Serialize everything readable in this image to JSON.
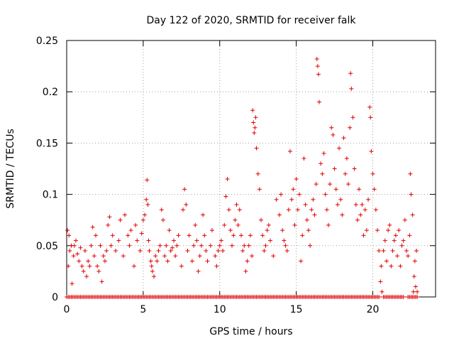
{
  "chart_data": {
    "type": "scatter",
    "title": "Day 122 of 2020, SRMTID for receiver falk",
    "xlabel": "GPS time / hours",
    "ylabel": "SRMTID / TECUs",
    "xlim": [
      0,
      24.1
    ],
    "ylim": [
      0,
      0.25
    ],
    "xticks": [
      0,
      5,
      10,
      15,
      20
    ],
    "xtick_labels": [
      "0",
      "5",
      "10",
      "15",
      "20"
    ],
    "yticks": [
      0,
      0.05,
      0.1,
      0.15,
      0.2,
      0.25
    ],
    "ytick_labels": [
      "0",
      "0.05",
      "0.1",
      "0.15",
      "0.2",
      "0.25"
    ],
    "grid": true,
    "marker": "+",
    "color": "#e00000",
    "series": [
      {
        "name": "SRMTID",
        "points": [
          [
            0.05,
            0.065
          ],
          [
            0.1,
            0.03
          ],
          [
            0.15,
            0.06
          ],
          [
            0.2,
            0.045
          ],
          [
            0.3,
            0.05
          ],
          [
            0.35,
            0.013
          ],
          [
            0.45,
            0.04
          ],
          [
            0.5,
            0.05
          ],
          [
            0.6,
            0.055
          ],
          [
            0.7,
            0.042
          ],
          [
            0.8,
            0.035
          ],
          [
            0.9,
            0.048
          ],
          [
            1.0,
            0.03
          ],
          [
            1.1,
            0.025
          ],
          [
            1.2,
            0.045
          ],
          [
            1.3,
            0.02
          ],
          [
            1.4,
            0.035
          ],
          [
            1.5,
            0.03
          ],
          [
            1.6,
            0.05
          ],
          [
            1.7,
            0.068
          ],
          [
            1.8,
            0.04
          ],
          [
            1.9,
            0.06
          ],
          [
            2.0,
            0.03
          ],
          [
            2.1,
            0.025
          ],
          [
            2.2,
            0.05
          ],
          [
            2.3,
            0.015
          ],
          [
            2.4,
            0.04
          ],
          [
            2.5,
            0.035
          ],
          [
            2.6,
            0.045
          ],
          [
            2.7,
            0.07
          ],
          [
            2.8,
            0.078
          ],
          [
            2.9,
            0.05
          ],
          [
            3.0,
            0.06
          ],
          [
            3.2,
            0.045
          ],
          [
            3.4,
            0.055
          ],
          [
            3.5,
            0.075
          ],
          [
            3.7,
            0.04
          ],
          [
            3.8,
            0.08
          ],
          [
            4.0,
            0.06
          ],
          [
            4.1,
            0.05
          ],
          [
            4.2,
            0.065
          ],
          [
            4.4,
            0.03
          ],
          [
            4.5,
            0.07
          ],
          [
            4.6,
            0.055
          ],
          [
            4.8,
            0.045
          ],
          [
            4.9,
            0.062
          ],
          [
            5.0,
            0.075
          ],
          [
            5.1,
            0.08
          ],
          [
            5.2,
            0.095
          ],
          [
            5.25,
            0.114
          ],
          [
            5.3,
            0.09
          ],
          [
            5.35,
            0.055
          ],
          [
            5.4,
            0.045
          ],
          [
            5.5,
            0.035
          ],
          [
            5.55,
            0.03
          ],
          [
            5.6,
            0.025
          ],
          [
            5.7,
            0.02
          ],
          [
            5.8,
            0.04
          ],
          [
            5.9,
            0.035
          ],
          [
            6.0,
            0.045
          ],
          [
            6.1,
            0.05
          ],
          [
            6.2,
            0.085
          ],
          [
            6.3,
            0.075
          ],
          [
            6.4,
            0.04
          ],
          [
            6.5,
            0.05
          ],
          [
            6.6,
            0.035
          ],
          [
            6.7,
            0.065
          ],
          [
            6.8,
            0.045
          ],
          [
            6.9,
            0.048
          ],
          [
            7.0,
            0.055
          ],
          [
            7.1,
            0.04
          ],
          [
            7.2,
            0.05
          ],
          [
            7.3,
            0.06
          ],
          [
            7.5,
            0.03
          ],
          [
            7.6,
            0.085
          ],
          [
            7.7,
            0.105
          ],
          [
            7.8,
            0.09
          ],
          [
            7.9,
            0.045
          ],
          [
            8.0,
            0.06
          ],
          [
            8.2,
            0.035
          ],
          [
            8.3,
            0.05
          ],
          [
            8.4,
            0.07
          ],
          [
            8.5,
            0.055
          ],
          [
            8.6,
            0.025
          ],
          [
            8.7,
            0.04
          ],
          [
            8.8,
            0.05
          ],
          [
            8.9,
            0.08
          ],
          [
            9.0,
            0.06
          ],
          [
            9.1,
            0.045
          ],
          [
            9.2,
            0.035
          ],
          [
            9.4,
            0.05
          ],
          [
            9.5,
            0.065
          ],
          [
            9.7,
            0.04
          ],
          [
            9.8,
            0.03
          ],
          [
            9.9,
            0.045
          ],
          [
            10.0,
            0.05
          ],
          [
            10.1,
            0.055
          ],
          [
            10.2,
            0.045
          ],
          [
            10.3,
            0.07
          ],
          [
            10.4,
            0.098
          ],
          [
            10.5,
            0.115
          ],
          [
            10.6,
            0.085
          ],
          [
            10.7,
            0.065
          ],
          [
            10.8,
            0.05
          ],
          [
            10.9,
            0.06
          ],
          [
            11.0,
            0.075
          ],
          [
            11.1,
            0.09
          ],
          [
            11.2,
            0.07
          ],
          [
            11.3,
            0.085
          ],
          [
            11.4,
            0.06
          ],
          [
            11.5,
            0.045
          ],
          [
            11.6,
            0.05
          ],
          [
            11.7,
            0.025
          ],
          [
            11.8,
            0.035
          ],
          [
            11.9,
            0.05
          ],
          [
            12.0,
            0.06
          ],
          [
            12.1,
            0.04
          ],
          [
            12.15,
            0.182
          ],
          [
            12.2,
            0.17
          ],
          [
            12.25,
            0.16
          ],
          [
            12.3,
            0.165
          ],
          [
            12.35,
            0.175
          ],
          [
            12.4,
            0.145
          ],
          [
            12.5,
            0.12
          ],
          [
            12.6,
            0.105
          ],
          [
            12.7,
            0.075
          ],
          [
            12.8,
            0.06
          ],
          [
            12.9,
            0.045
          ],
          [
            13.0,
            0.05
          ],
          [
            13.1,
            0.065
          ],
          [
            13.2,
            0.07
          ],
          [
            13.3,
            0.055
          ],
          [
            13.5,
            0.04
          ],
          [
            13.7,
            0.095
          ],
          [
            13.9,
            0.08
          ],
          [
            14.0,
            0.1
          ],
          [
            14.1,
            0.065
          ],
          [
            14.2,
            0.055
          ],
          [
            14.3,
            0.05
          ],
          [
            14.4,
            0.045
          ],
          [
            14.5,
            0.085
          ],
          [
            14.6,
            0.142
          ],
          [
            14.7,
            0.095
          ],
          [
            14.8,
            0.105
          ],
          [
            14.9,
            0.07
          ],
          [
            15.0,
            0.115
          ],
          [
            15.1,
            0.085
          ],
          [
            15.2,
            0.1
          ],
          [
            15.3,
            0.035
          ],
          [
            15.4,
            0.06
          ],
          [
            15.5,
            0.135
          ],
          [
            15.6,
            0.09
          ],
          [
            15.7,
            0.075
          ],
          [
            15.8,
            0.065
          ],
          [
            15.9,
            0.05
          ],
          [
            16.0,
            0.085
          ],
          [
            16.1,
            0.095
          ],
          [
            16.2,
            0.08
          ],
          [
            16.3,
            0.11
          ],
          [
            16.35,
            0.232
          ],
          [
            16.4,
            0.225
          ],
          [
            16.45,
            0.217
          ],
          [
            16.5,
            0.19
          ],
          [
            16.6,
            0.13
          ],
          [
            16.7,
            0.12
          ],
          [
            16.8,
            0.14
          ],
          [
            16.9,
            0.1
          ],
          [
            17.0,
            0.085
          ],
          [
            17.1,
            0.07
          ],
          [
            17.2,
            0.11
          ],
          [
            17.3,
            0.165
          ],
          [
            17.4,
            0.158
          ],
          [
            17.5,
            0.125
          ],
          [
            17.6,
            0.105
          ],
          [
            17.7,
            0.09
          ],
          [
            17.8,
            0.145
          ],
          [
            17.9,
            0.095
          ],
          [
            18.0,
            0.08
          ],
          [
            18.1,
            0.155
          ],
          [
            18.2,
            0.12
          ],
          [
            18.3,
            0.135
          ],
          [
            18.4,
            0.11
          ],
          [
            18.5,
            0.165
          ],
          [
            18.55,
            0.218
          ],
          [
            18.6,
            0.203
          ],
          [
            18.7,
            0.175
          ],
          [
            18.8,
            0.125
          ],
          [
            18.9,
            0.09
          ],
          [
            19.0,
            0.075
          ],
          [
            19.1,
            0.105
          ],
          [
            19.2,
            0.08
          ],
          [
            19.3,
            0.09
          ],
          [
            19.4,
            0.06
          ],
          [
            19.5,
            0.085
          ],
          [
            19.6,
            0.065
          ],
          [
            19.7,
            0.095
          ],
          [
            19.8,
            0.185
          ],
          [
            19.85,
            0.175
          ],
          [
            19.9,
            0.142
          ],
          [
            20.0,
            0.12
          ],
          [
            20.1,
            0.105
          ],
          [
            20.2,
            0.085
          ],
          [
            20.3,
            0.065
          ],
          [
            20.4,
            0.045
          ],
          [
            20.5,
            0.015
          ],
          [
            20.55,
            0.03
          ],
          [
            20.6,
            0.005
          ],
          [
            20.7,
            0.045
          ],
          [
            20.8,
            0.055
          ],
          [
            20.9,
            0.035
          ],
          [
            21.0,
            0.065
          ],
          [
            21.1,
            0.07
          ],
          [
            21.2,
            0.03
          ],
          [
            21.3,
            0.045
          ],
          [
            21.4,
            0.055
          ],
          [
            21.5,
            0.06
          ],
          [
            21.6,
            0.04
          ],
          [
            21.7,
            0.065
          ],
          [
            21.8,
            0.03
          ],
          [
            21.9,
            0.05
          ],
          [
            22.0,
            0.055
          ],
          [
            22.1,
            0.075
          ],
          [
            22.2,
            0.045
          ],
          [
            22.3,
            0.04
          ],
          [
            22.4,
            0.06
          ],
          [
            22.45,
            0.12
          ],
          [
            22.5,
            0.1
          ],
          [
            22.6,
            0.08
          ],
          [
            22.65,
            0.005
          ],
          [
            22.7,
            0.02
          ],
          [
            22.75,
            0.035
          ],
          [
            22.8,
            0.01
          ],
          [
            22.85,
            0.045
          ],
          [
            22.9,
            0.005
          ]
        ]
      }
    ],
    "zero_rows": [
      [
        0.0,
        20.5
      ],
      [
        20.7,
        22.1
      ],
      [
        22.3,
        23.0
      ]
    ]
  }
}
